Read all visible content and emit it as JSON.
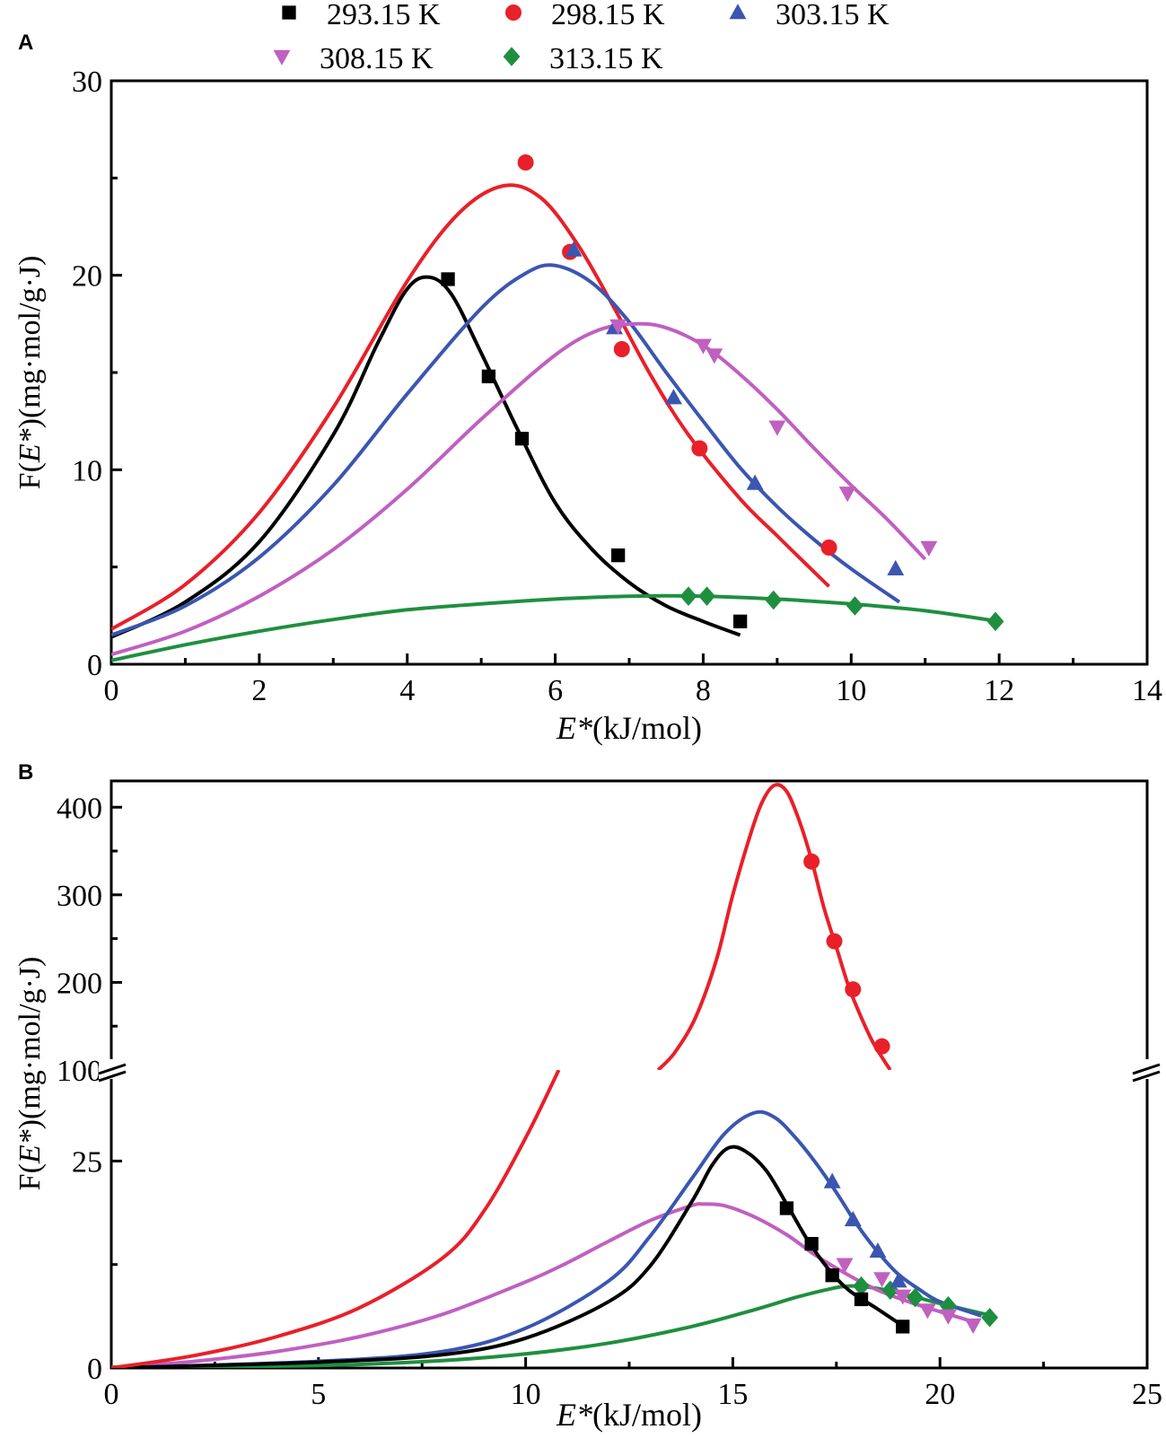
{
  "legend": [
    {
      "label": "293.15 K",
      "color": "#000000",
      "marker": "square"
    },
    {
      "label": "298.15 K",
      "color": "#e8202a",
      "marker": "circle"
    },
    {
      "label": "303.15 K",
      "color": "#3a56b0",
      "marker": "triangle-up"
    },
    {
      "label": "308.15 K",
      "color": "#c060c0",
      "marker": "triangle-down"
    },
    {
      "label": "313.15 K",
      "color": "#1f8f3f",
      "marker": "diamond"
    }
  ],
  "chart_data": [
    {
      "panel": "A",
      "type": "scatter",
      "xlabel_italic": "E*",
      "xlabel_rest": "(kJ/mol)",
      "ylabel_prefix": "F(",
      "ylabel_italic": "E*",
      "ylabel_suffix": ")(mg·mol/g·J)",
      "xlim": [
        0,
        14
      ],
      "ylim": [
        0,
        30
      ],
      "xticks": [
        0,
        2,
        4,
        6,
        8,
        10,
        12,
        14
      ],
      "yticks": [
        0,
        10,
        20,
        30
      ],
      "series": [
        {
          "name": "293.15 K",
          "points": [
            [
              4.55,
              19.8
            ],
            [
              5.1,
              14.8
            ],
            [
              5.55,
              11.6
            ],
            [
              6.85,
              5.6
            ],
            [
              8.5,
              2.2
            ]
          ],
          "fit": [
            [
              0,
              1.4
            ],
            [
              1,
              3.2
            ],
            [
              2,
              6.3
            ],
            [
              3,
              11.8
            ],
            [
              3.6,
              16.5
            ],
            [
              4,
              19.3
            ],
            [
              4.3,
              19.9
            ],
            [
              4.6,
              19.0
            ],
            [
              5,
              16.0
            ],
            [
              5.5,
              12.0
            ],
            [
              6,
              8.3
            ],
            [
              6.5,
              5.9
            ],
            [
              7,
              4.2
            ],
            [
              7.5,
              3.0
            ],
            [
              8,
              2.2
            ],
            [
              8.5,
              1.5
            ]
          ]
        },
        {
          "name": "298.15 K",
          "points": [
            [
              5.6,
              25.8
            ],
            [
              6.2,
              21.2
            ],
            [
              6.9,
              16.2
            ],
            [
              7.95,
              11.1
            ],
            [
              9.7,
              6.0
            ]
          ],
          "fit": [
            [
              0,
              1.8
            ],
            [
              1,
              4.1
            ],
            [
              2,
              7.8
            ],
            [
              3,
              13.2
            ],
            [
              4,
              19.7
            ],
            [
              4.7,
              23.2
            ],
            [
              5.3,
              24.6
            ],
            [
              5.8,
              24.0
            ],
            [
              6.3,
              21.6
            ],
            [
              6.8,
              18.3
            ],
            [
              7.3,
              14.8
            ],
            [
              7.8,
              11.8
            ],
            [
              8.5,
              8.5
            ],
            [
              9,
              6.6
            ],
            [
              9.7,
              4.0
            ]
          ]
        },
        {
          "name": "303.15 K",
          "points": [
            [
              6.25,
              21.3
            ],
            [
              6.8,
              17.3
            ],
            [
              7.6,
              13.7
            ],
            [
              8.7,
              9.3
            ],
            [
              10.6,
              4.9
            ]
          ],
          "fit": [
            [
              0,
              1.5
            ],
            [
              1,
              3.0
            ],
            [
              2,
              5.5
            ],
            [
              3,
              9.2
            ],
            [
              4,
              13.9
            ],
            [
              5,
              18.3
            ],
            [
              5.6,
              20.1
            ],
            [
              6,
              20.5
            ],
            [
              6.5,
              19.6
            ],
            [
              7,
              17.6
            ],
            [
              7.5,
              15.0
            ],
            [
              8,
              12.5
            ],
            [
              8.5,
              10.1
            ],
            [
              9,
              8.1
            ],
            [
              9.5,
              6.4
            ],
            [
              10,
              4.9
            ],
            [
              10.65,
              3.2
            ]
          ]
        },
        {
          "name": "308.15 K",
          "points": [
            [
              6.85,
              17.4
            ],
            [
              8.0,
              16.4
            ],
            [
              8.15,
              15.9
            ],
            [
              9.0,
              12.2
            ],
            [
              9.95,
              8.8
            ],
            [
              11.05,
              6.0
            ]
          ],
          "fit": [
            [
              0,
              0.5
            ],
            [
              1,
              1.7
            ],
            [
              2,
              3.5
            ],
            [
              3,
              5.9
            ],
            [
              4,
              9.0
            ],
            [
              5,
              12.6
            ],
            [
              6,
              15.9
            ],
            [
              6.6,
              17.2
            ],
            [
              7.1,
              17.5
            ],
            [
              7.5,
              17.3
            ],
            [
              8,
              16.4
            ],
            [
              8.5,
              14.9
            ],
            [
              9,
              13.1
            ],
            [
              9.5,
              11.1
            ],
            [
              10,
              9.2
            ],
            [
              10.5,
              7.4
            ],
            [
              11,
              5.4
            ]
          ]
        },
        {
          "name": "313.15 K",
          "points": [
            [
              7.8,
              3.5
            ],
            [
              8.05,
              3.5
            ],
            [
              8.95,
              3.3
            ],
            [
              10.05,
              3.0
            ],
            [
              11.95,
              2.2
            ]
          ],
          "fit": [
            [
              0,
              0.2
            ],
            [
              1,
              1.0
            ],
            [
              2,
              1.7
            ],
            [
              3,
              2.3
            ],
            [
              4,
              2.8
            ],
            [
              5,
              3.1
            ],
            [
              6,
              3.35
            ],
            [
              7,
              3.5
            ],
            [
              8,
              3.5
            ],
            [
              9,
              3.35
            ],
            [
              10,
              3.1
            ],
            [
              11,
              2.75
            ],
            [
              12,
              2.2
            ]
          ]
        }
      ]
    },
    {
      "panel": "B",
      "type": "scatter",
      "broken_y_axis": true,
      "xlabel_italic": "E*",
      "xlabel_rest": "(kJ/mol)",
      "ylabel_prefix": "F(",
      "ylabel_italic": "E*",
      "ylabel_suffix": ")(mg·mol/g·J)",
      "xlim": [
        0,
        25
      ],
      "ylim_lower": [
        0,
        36
      ],
      "ylim_upper": [
        100,
        430
      ],
      "xticks": [
        0,
        5,
        10,
        15,
        20,
        25
      ],
      "yticks_lower": [
        0,
        25
      ],
      "yticks_upper": [
        100,
        200,
        300,
        400
      ],
      "series": [
        {
          "name": "293.15 K",
          "points": [
            [
              16.3,
              19.3
            ],
            [
              16.9,
              15.0
            ],
            [
              17.4,
              11.2
            ],
            [
              18.1,
              8.3
            ],
            [
              19.1,
              5.0
            ]
          ],
          "fit": [
            [
              0,
              0
            ],
            [
              5,
              0.7
            ],
            [
              8,
              1.6
            ],
            [
              10,
              3.6
            ],
            [
              12,
              8.0
            ],
            [
              13,
              12.3
            ],
            [
              14,
              20.0
            ],
            [
              14.5,
              24.5
            ],
            [
              14.9,
              26.6
            ],
            [
              15.3,
              26.2
            ],
            [
              15.8,
              23.9
            ],
            [
              16.3,
              19.8
            ],
            [
              16.8,
              15.5
            ],
            [
              17.3,
              12.0
            ],
            [
              17.8,
              9.4
            ],
            [
              18.5,
              7.1
            ],
            [
              19.1,
              5.1
            ]
          ]
        },
        {
          "name": "298.15 K",
          "points": [
            [
              16.9,
              338
            ],
            [
              17.45,
              247
            ],
            [
              17.9,
              192
            ],
            [
              18.6,
              127
            ]
          ],
          "fit_lower": [
            [
              0,
              0
            ],
            [
              2,
              1.5
            ],
            [
              4,
              3.8
            ],
            [
              6,
              7.3
            ],
            [
              8,
              13.3
            ],
            [
              9,
              19.0
            ],
            [
              10,
              27.8
            ],
            [
              10.8,
              36
            ]
          ],
          "fit_upper": [
            [
              13.2,
              100
            ],
            [
              13.6,
              120
            ],
            [
              14.1,
              160
            ],
            [
              14.6,
              225
            ],
            [
              15.0,
              300
            ],
            [
              15.4,
              365
            ],
            [
              15.7,
              405
            ],
            [
              16.0,
              425
            ],
            [
              16.3,
              418
            ],
            [
              16.6,
              385
            ],
            [
              16.9,
              340
            ],
            [
              17.2,
              285
            ],
            [
              17.5,
              240
            ],
            [
              17.8,
              195
            ],
            [
              18.1,
              160
            ],
            [
              18.4,
              130
            ],
            [
              18.8,
              100
            ]
          ]
        },
        {
          "name": "303.15 K",
          "points": [
            [
              17.4,
              22.5
            ],
            [
              17.9,
              17.9
            ],
            [
              18.5,
              14.1
            ],
            [
              19.0,
              10.5
            ]
          ],
          "fit": [
            [
              0,
              0
            ],
            [
              5,
              0.8
            ],
            [
              8,
              2.0
            ],
            [
              10,
              4.8
            ],
            [
              12,
              10.5
            ],
            [
              13,
              15.9
            ],
            [
              14,
              22.8
            ],
            [
              14.8,
              28.3
            ],
            [
              15.5,
              30.8
            ],
            [
              16,
              30.3
            ],
            [
              16.5,
              27.9
            ],
            [
              17,
              24.8
            ],
            [
              17.5,
              21.2
            ],
            [
              18,
              17.3
            ],
            [
              18.5,
              14.0
            ],
            [
              19,
              11.3
            ],
            [
              19.5,
              9.5
            ],
            [
              20,
              8.0
            ],
            [
              21,
              6.3
            ]
          ]
        },
        {
          "name": "308.15 K",
          "points": [
            [
              17.7,
              12.5
            ],
            [
              18.6,
              10.8
            ],
            [
              19.1,
              8.7
            ],
            [
              19.7,
              7.0
            ],
            [
              20.2,
              6.3
            ],
            [
              20.8,
              5.2
            ]
          ],
          "fit": [
            [
              0,
              0
            ],
            [
              2,
              0.8
            ],
            [
              4,
              2.0
            ],
            [
              6,
              3.8
            ],
            [
              8,
              6.5
            ],
            [
              10,
              10.4
            ],
            [
              11,
              12.7
            ],
            [
              12,
              15.3
            ],
            [
              13,
              17.8
            ],
            [
              14,
              19.6
            ],
            [
              14.3,
              19.8
            ],
            [
              14.8,
              19.6
            ],
            [
              15.5,
              18.3
            ],
            [
              16.3,
              16.1
            ],
            [
              17,
              13.6
            ],
            [
              17.8,
              11.2
            ],
            [
              18.5,
              9.4
            ],
            [
              19.3,
              7.9
            ],
            [
              20,
              6.8
            ],
            [
              20.8,
              5.6
            ]
          ]
        },
        {
          "name": "313.15 K",
          "points": [
            [
              18.1,
              9.9
            ],
            [
              18.8,
              9.4
            ],
            [
              19.4,
              8.5
            ],
            [
              20.2,
              7.5
            ],
            [
              21.2,
              6.1
            ]
          ],
          "fit": [
            [
              0,
              0.1
            ],
            [
              5,
              0.3
            ],
            [
              8,
              0.9
            ],
            [
              10,
              1.7
            ],
            [
              12,
              3.0
            ],
            [
              14,
              5.0
            ],
            [
              15.5,
              7.0
            ],
            [
              16.5,
              8.5
            ],
            [
              17.3,
              9.5
            ],
            [
              17.8,
              9.9
            ],
            [
              18.5,
              9.6
            ],
            [
              19.3,
              8.7
            ],
            [
              20,
              7.8
            ],
            [
              21,
              6.6
            ],
            [
              21.3,
              6.3
            ]
          ]
        }
      ]
    }
  ]
}
